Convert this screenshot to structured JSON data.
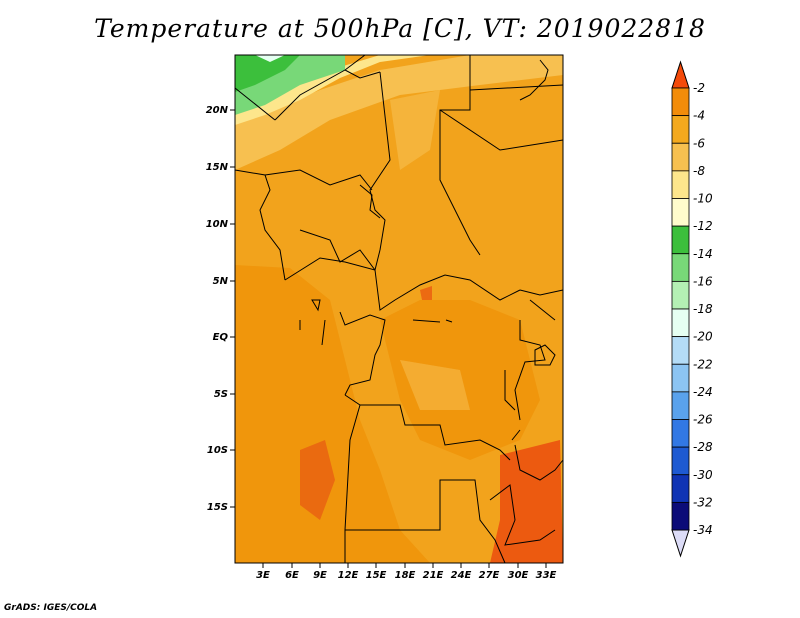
{
  "title": "Temperature at 500hPa [C], VT: 2019022818",
  "credit": "GrADS: IGES/COLA",
  "map": {
    "lat_labels": [
      "20N",
      "15N",
      "10N",
      "5N",
      "EQ",
      "5S",
      "10S",
      "15S"
    ],
    "lon_labels": [
      "3E",
      "6E",
      "9E",
      "12E",
      "15E",
      "18E",
      "21E",
      "24E",
      "27E",
      "30E",
      "33E"
    ]
  },
  "colorbar": {
    "levels": [
      "-2",
      "-4",
      "-6",
      "-8",
      "-10",
      "-12",
      "-14",
      "-16",
      "-18",
      "-20",
      "-22",
      "-24",
      "-26",
      "-28",
      "-30",
      "-32",
      "-34"
    ],
    "colors": [
      "#f45a0c",
      "#f28c0a",
      "#f4a91e",
      "#f7c050",
      "#fde68c",
      "#fffccc",
      "#3cbf3c",
      "#78d878",
      "#b4f0b4",
      "#e6fff2",
      "#b4dcf7",
      "#8cc4f2",
      "#5aa2ec",
      "#3278e4",
      "#1e5ad2",
      "#1034b4",
      "#0c0c78"
    ],
    "top_color": "#f44a0a",
    "bottom_color": "#dcdcf7"
  }
}
